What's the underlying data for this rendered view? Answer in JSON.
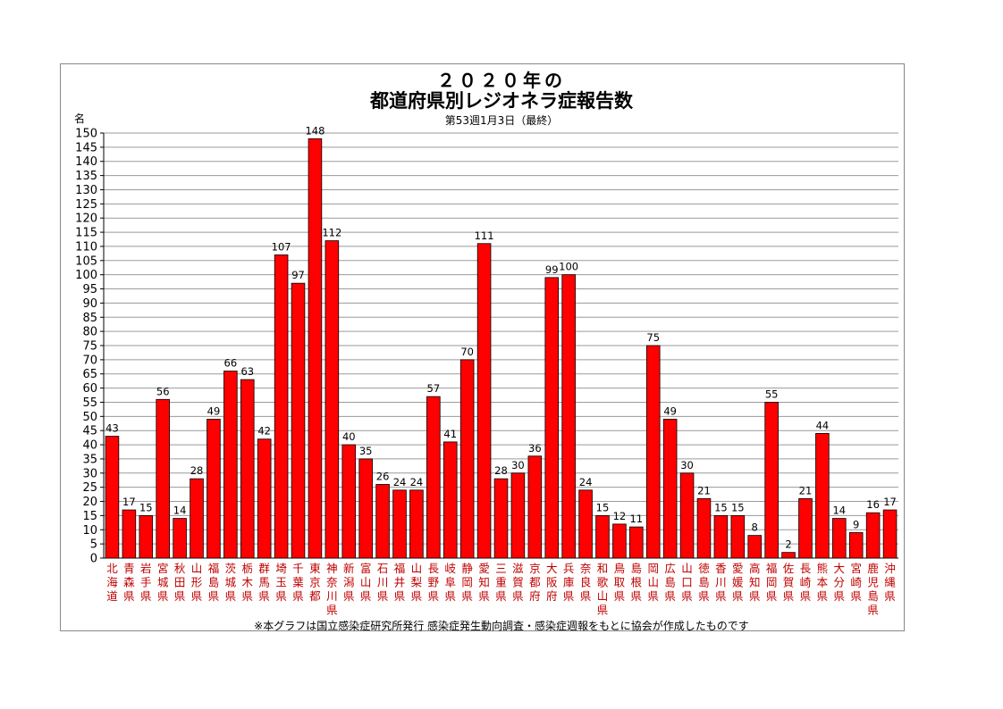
{
  "chart_data": {
    "type": "bar",
    "title": "２０２０年の",
    "subtitle": "都道府県別レジオネラ症報告数",
    "note": "第53週1月3日（最終）",
    "ylabel": "名",
    "ylim": [
      0,
      150
    ],
    "ytick_step": 5,
    "grid": true,
    "bar_color": "#ff0000",
    "bar_edge_color": "#000000",
    "label_color": "#c00000",
    "categories": [
      "北海道",
      "青森県",
      "岩手県",
      "宮城県",
      "秋田県",
      "山形県",
      "福島県",
      "茨城県",
      "栃木県",
      "群馬県",
      "埼玉県",
      "千葉県",
      "東京都",
      "神奈川県",
      "新潟県",
      "富山県",
      "石川県",
      "福井県",
      "山梨県",
      "長野県",
      "岐阜県",
      "静岡県",
      "愛知県",
      "三重県",
      "滋賀県",
      "京都府",
      "大阪府",
      "兵庫県",
      "奈良県",
      "和歌山県",
      "鳥取県",
      "島根県",
      "岡山県",
      "広島県",
      "山口県",
      "徳島県",
      "香川県",
      "愛媛県",
      "高知県",
      "福岡県",
      "佐賀県",
      "長崎県",
      "熊本県",
      "大分県",
      "宮崎県",
      "鹿児島県",
      "沖縄県"
    ],
    "values": [
      43,
      17,
      15,
      56,
      14,
      28,
      49,
      66,
      63,
      42,
      107,
      97,
      148,
      112,
      40,
      35,
      26,
      24,
      24,
      57,
      41,
      70,
      111,
      28,
      30,
      36,
      99,
      100,
      24,
      15,
      12,
      11,
      75,
      49,
      30,
      21,
      15,
      15,
      8,
      55,
      2,
      21,
      44,
      14,
      9,
      16,
      17
    ],
    "footnote": "※本グラフは国立感染症研究所発行 感染症発生動向調査・感染症週報をもとに協会が作成したものです"
  }
}
